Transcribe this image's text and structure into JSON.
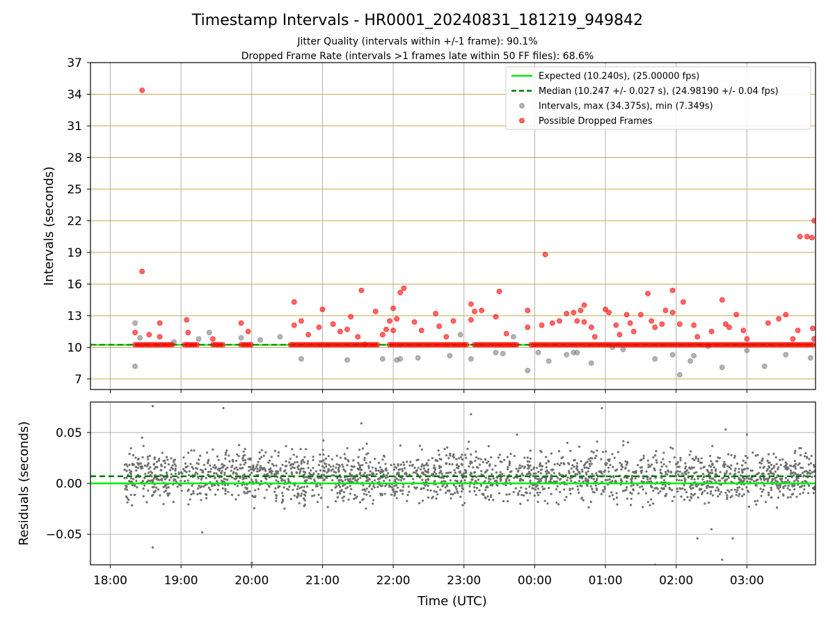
{
  "chart_data": [
    {
      "type": "scatter",
      "title": "Timestamp Intervals - HR0001_20240831_181219_949842",
      "subtitle_1": "Jitter Quality (intervals within +/-1 frame): 90.1%",
      "subtitle_2": "Dropped Frame Rate (intervals >1 frames late within 50 FF files): 68.6%",
      "xlabel": "",
      "ylabel": "Intervals (seconds)",
      "x_ticklabels": [
        "18:00",
        "19:00",
        "20:00",
        "21:00",
        "22:00",
        "23:00",
        "00:00",
        "01:00",
        "02:00",
        "03:00"
      ],
      "xlim_hours": [
        17.72,
        27.97
      ],
      "ylim": [
        6,
        37
      ],
      "y_ticks": [
        7,
        10,
        13,
        16,
        19,
        22,
        25,
        28,
        31,
        34,
        37
      ],
      "grid": true,
      "legend_position": "top-right",
      "reference_lines": {
        "expected": {
          "label": "Expected (10.240s), (25.00000 fps)",
          "value": 10.24,
          "color": "#00ee00"
        },
        "median": {
          "label": "Median (10.247 +/- 0.027 s), (24.98190 +/- 0.04 fps)",
          "value": 10.247,
          "color": "#007700"
        }
      },
      "series": [
        {
          "name": "Intervals, max (34.375s), min (7.349s)",
          "color": "#808080",
          "points": [
            [
              18.35,
              12.3
            ],
            [
              18.35,
              8.2
            ],
            [
              18.42,
              10.9
            ],
            [
              18.9,
              10.5
            ],
            [
              19.25,
              10.8
            ],
            [
              19.4,
              11.4
            ],
            [
              19.85,
              10.9
            ],
            [
              20.12,
              10.7
            ],
            [
              20.4,
              11.0
            ],
            [
              20.7,
              8.9
            ],
            [
              21.35,
              8.8
            ],
            [
              21.6,
              10.3
            ],
            [
              21.85,
              8.9
            ],
            [
              22.05,
              8.8
            ],
            [
              22.1,
              8.9
            ],
            [
              22.35,
              9.0
            ],
            [
              22.8,
              9.2
            ],
            [
              22.95,
              11.2
            ],
            [
              23.1,
              8.9
            ],
            [
              23.45,
              9.5
            ],
            [
              23.55,
              9.4
            ],
            [
              23.7,
              11.0
            ],
            [
              23.9,
              7.8
            ],
            [
              24.05,
              9.5
            ],
            [
              24.2,
              8.7
            ],
            [
              24.45,
              9.3
            ],
            [
              24.55,
              9.5
            ],
            [
              24.6,
              9.5
            ],
            [
              24.8,
              8.5
            ],
            [
              25.1,
              10.0
            ],
            [
              25.25,
              9.8
            ],
            [
              25.7,
              8.9
            ],
            [
              25.95,
              9.3
            ],
            [
              26.05,
              7.4
            ],
            [
              26.2,
              8.7
            ],
            [
              26.25,
              9.2
            ],
            [
              26.45,
              10.1
            ],
            [
              26.65,
              8.1
            ],
            [
              27.0,
              9.7
            ],
            [
              27.25,
              8.2
            ],
            [
              27.55,
              9.3
            ],
            [
              27.9,
              9.0
            ]
          ]
        },
        {
          "name": "Possible Dropped Frames",
          "color": "#ff0000",
          "baseline": 10.247,
          "baseline_segments": [
            [
              18.35,
              18.88
            ],
            [
              19.05,
              19.25
            ],
            [
              19.45,
              19.6
            ],
            [
              19.85,
              20.0
            ],
            [
              20.55,
              21.8
            ],
            [
              21.95,
              23.05
            ],
            [
              23.15,
              23.75
            ],
            [
              23.95,
              27.95
            ]
          ],
          "points": [
            [
              18.45,
              34.375
            ],
            [
              18.45,
              17.2
            ],
            [
              18.35,
              11.4
            ],
            [
              18.55,
              11.2
            ],
            [
              18.7,
              12.3
            ],
            [
              18.7,
              11.0
            ],
            [
              19.08,
              12.6
            ],
            [
              19.1,
              11.4
            ],
            [
              19.45,
              10.8
            ],
            [
              19.85,
              12.3
            ],
            [
              19.95,
              11.5
            ],
            [
              20.6,
              14.3
            ],
            [
              20.7,
              12.5
            ],
            [
              20.6,
              12.1
            ],
            [
              20.8,
              11.2
            ],
            [
              20.95,
              11.9
            ],
            [
              21.0,
              13.6
            ],
            [
              21.15,
              12.2
            ],
            [
              21.25,
              11.5
            ],
            [
              21.35,
              11.7
            ],
            [
              21.4,
              12.9
            ],
            [
              21.5,
              11.0
            ],
            [
              21.55,
              15.4
            ],
            [
              21.75,
              13.4
            ],
            [
              21.85,
              11.2
            ],
            [
              21.9,
              11.7
            ],
            [
              21.95,
              12.5
            ],
            [
              22.0,
              13.7
            ],
            [
              22.05,
              12.7
            ],
            [
              22.1,
              15.2
            ],
            [
              22.15,
              15.6
            ],
            [
              22.0,
              11.6
            ],
            [
              22.3,
              12.4
            ],
            [
              22.4,
              11.6
            ],
            [
              22.6,
              13.2
            ],
            [
              22.65,
              12.0
            ],
            [
              22.75,
              11.0
            ],
            [
              22.85,
              12.5
            ],
            [
              23.1,
              14.1
            ],
            [
              23.15,
              13.4
            ],
            [
              23.25,
              13.5
            ],
            [
              23.1,
              12.6
            ],
            [
              23.45,
              12.9
            ],
            [
              23.5,
              15.3
            ],
            [
              23.6,
              11.3
            ],
            [
              23.9,
              13.5
            ],
            [
              23.9,
              11.9
            ],
            [
              24.1,
              12.1
            ],
            [
              24.15,
              18.8
            ],
            [
              24.25,
              12.3
            ],
            [
              24.35,
              12.5
            ],
            [
              24.45,
              13.2
            ],
            [
              24.55,
              13.3
            ],
            [
              24.6,
              12.5
            ],
            [
              24.65,
              13.5
            ],
            [
              24.7,
              12.4
            ],
            [
              24.7,
              14.0
            ],
            [
              24.8,
              11.9
            ],
            [
              24.85,
              11.0
            ],
            [
              25.0,
              13.6
            ],
            [
              25.05,
              13.3
            ],
            [
              25.15,
              12.1
            ],
            [
              25.2,
              11.2
            ],
            [
              25.3,
              13.1
            ],
            [
              25.35,
              12.3
            ],
            [
              25.4,
              11.5
            ],
            [
              25.5,
              13.1
            ],
            [
              25.6,
              15.1
            ],
            [
              25.65,
              12.5
            ],
            [
              25.7,
              11.9
            ],
            [
              25.8,
              12.2
            ],
            [
              25.85,
              13.5
            ],
            [
              25.95,
              13.3
            ],
            [
              25.95,
              15.4
            ],
            [
              26.05,
              12.2
            ],
            [
              26.1,
              14.3
            ],
            [
              26.25,
              12.1
            ],
            [
              26.3,
              11.0
            ],
            [
              26.5,
              11.5
            ],
            [
              26.65,
              14.5
            ],
            [
              26.7,
              12.2
            ],
            [
              26.75,
              11.9
            ],
            [
              26.85,
              13.1
            ],
            [
              26.95,
              11.6
            ],
            [
              27.0,
              10.8
            ],
            [
              27.3,
              12.3
            ],
            [
              27.45,
              12.7
            ],
            [
              27.55,
              13.1
            ],
            [
              27.65,
              10.8
            ],
            [
              27.72,
              11.6
            ],
            [
              27.75,
              20.5
            ],
            [
              27.85,
              20.5
            ],
            [
              27.92,
              20.4
            ],
            [
              27.95,
              22.0
            ],
            [
              27.93,
              11.8
            ],
            [
              27.95,
              10.8
            ]
          ]
        }
      ]
    },
    {
      "type": "scatter",
      "xlabel": "Time (UTC)",
      "ylabel": "Residuals (seconds)",
      "x_ticklabels": [
        "18:00",
        "19:00",
        "20:00",
        "21:00",
        "22:00",
        "23:00",
        "00:00",
        "01:00",
        "02:00",
        "03:00"
      ],
      "xlim_hours": [
        17.72,
        27.97
      ],
      "ylim": [
        -0.08,
        0.08
      ],
      "y_ticks": [
        -0.05,
        0.0,
        0.05
      ],
      "y_ticklabels": [
        "−0.05",
        "0.00",
        "0.05"
      ],
      "grid": true,
      "reference_lines": {
        "expected": {
          "value": 0.0,
          "color": "#00ee00"
        },
        "median": {
          "value": 0.007,
          "color": "#007700"
        }
      },
      "series": [
        {
          "name": "",
          "color": "#707070",
          "x_range_hours": [
            18.2,
            27.97
          ],
          "center": 0.007,
          "spread": 0.012,
          "count": 2400,
          "outliers": [
            [
              18.45,
              0.045
            ],
            [
              18.6,
              0.076
            ],
            [
              18.6,
              -0.063
            ],
            [
              19.3,
              -0.048
            ],
            [
              19.6,
              0.074
            ],
            [
              20.0,
              -0.078
            ],
            [
              21.55,
              0.059
            ],
            [
              23.1,
              0.068
            ],
            [
              23.75,
              0.048
            ],
            [
              24.95,
              0.074
            ],
            [
              25.7,
              -0.08
            ],
            [
              26.3,
              -0.054
            ],
            [
              26.5,
              -0.045
            ],
            [
              26.7,
              0.053
            ],
            [
              26.65,
              -0.075
            ],
            [
              27.0,
              0.048
            ],
            [
              26.8,
              -0.054
            ]
          ]
        }
      ]
    }
  ],
  "legend": {
    "entries": [
      {
        "label": "Expected (10.240s), (25.00000 fps)",
        "kind": "solid-line",
        "color": "#00ee00"
      },
      {
        "label": "Median (10.247 +/- 0.027 s), (24.98190 +/- 0.04 fps)",
        "kind": "dashed-line",
        "color": "#007700"
      },
      {
        "label": "Intervals, max (34.375s), min (7.349s)",
        "kind": "dot",
        "color": "#808080"
      },
      {
        "label": "Possible Dropped Frames",
        "kind": "dot",
        "color": "#ff0000"
      }
    ]
  },
  "colors": {
    "grid": "#b0b0b0",
    "top_grid": "#c8a84a",
    "axes": "#000000"
  }
}
